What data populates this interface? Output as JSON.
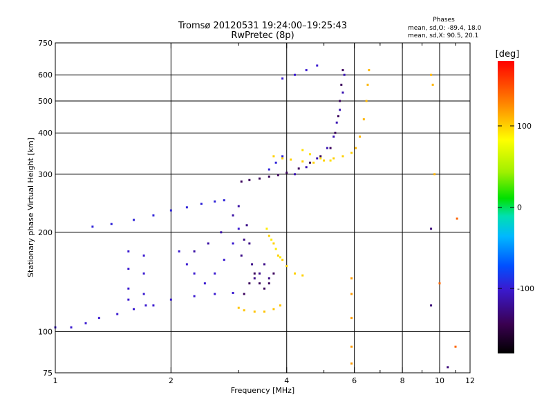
{
  "chart_data": {
    "type": "scatter",
    "title": "Tromsø 20120531 19:24:00–19:25:43",
    "subtitle": "RwPretec (8p)",
    "xlabel": "Frequency [MHz]",
    "ylabel": "Stationary phase Virtual Height [km]",
    "x_scale": "log",
    "y_scale": "log",
    "xlim": [
      1,
      12
    ],
    "ylim": [
      75,
      750
    ],
    "x_ticks": [
      1,
      2,
      4,
      6,
      8,
      10,
      12
    ],
    "x_minor_ticks": [
      3,
      5,
      7,
      9,
      11
    ],
    "y_ticks": [
      75,
      100,
      200,
      300,
      400,
      500,
      600,
      750
    ],
    "grid": true,
    "stats": {
      "heading": "Phases",
      "line1": "mean, sd,O: -89.4, 18.0",
      "line2": "mean, sd,X:  90.5, 20.1"
    },
    "colorbar": {
      "label": "[deg]",
      "range": [
        -180,
        180
      ],
      "ticks": [
        {
          "value": 100,
          "label": "100"
        },
        {
          "value": 0,
          "label": "0"
        },
        {
          "value": -100,
          "label": "-100"
        }
      ]
    },
    "traces": [
      {
        "phase": -100,
        "pts": [
          [
            1.0,
            103
          ],
          [
            1.1,
            103
          ],
          [
            1.2,
            106
          ],
          [
            1.3,
            110
          ],
          [
            1.45,
            113
          ],
          [
            1.6,
            117
          ],
          [
            1.8,
            120
          ],
          [
            2.0,
            125
          ],
          [
            2.3,
            128
          ],
          [
            2.6,
            130
          ],
          [
            2.9,
            131
          ]
        ]
      },
      {
        "phase": -95,
        "pts": [
          [
            1.25,
            208
          ],
          [
            1.4,
            212
          ],
          [
            1.6,
            218
          ],
          [
            1.8,
            225
          ],
          [
            2.0,
            233
          ],
          [
            2.2,
            238
          ],
          [
            2.4,
            244
          ],
          [
            2.6,
            248
          ],
          [
            2.75,
            250
          ]
        ]
      },
      {
        "phase": -100,
        "pts": [
          [
            1.55,
            175
          ],
          [
            1.55,
            155
          ],
          [
            1.55,
            135
          ],
          [
            1.55,
            125
          ]
        ]
      },
      {
        "phase": -100,
        "pts": [
          [
            1.7,
            170
          ],
          [
            1.7,
            150
          ],
          [
            1.7,
            130
          ],
          [
            1.72,
            120
          ]
        ]
      },
      {
        "phase": -100,
        "pts": [
          [
            2.1,
            175
          ],
          [
            2.2,
            160
          ],
          [
            2.3,
            150
          ],
          [
            2.45,
            140
          ],
          [
            2.6,
            150
          ],
          [
            2.75,
            165
          ],
          [
            2.9,
            185
          ],
          [
            3.0,
            205
          ]
        ]
      },
      {
        "phase": -115,
        "pts": [
          [
            2.3,
            175
          ],
          [
            2.5,
            185
          ],
          [
            2.7,
            200
          ],
          [
            2.9,
            225
          ],
          [
            3.0,
            240
          ]
        ]
      },
      {
        "phase": -125,
        "pts": [
          [
            3.05,
            170
          ],
          [
            3.1,
            190
          ],
          [
            3.15,
            210
          ],
          [
            3.2,
            185
          ],
          [
            3.25,
            160
          ],
          [
            3.3,
            145
          ],
          [
            3.4,
            150
          ],
          [
            3.5,
            160
          ],
          [
            3.6,
            145
          ]
        ]
      },
      {
        "phase": -140,
        "pts": [
          [
            3.1,
            130
          ],
          [
            3.2,
            140
          ],
          [
            3.3,
            150
          ],
          [
            3.4,
            140
          ],
          [
            3.5,
            135
          ],
          [
            3.6,
            140
          ],
          [
            3.7,
            150
          ]
        ]
      },
      {
        "phase": 105,
        "pts": [
          [
            3.0,
            118
          ],
          [
            3.1,
            116
          ],
          [
            3.3,
            115
          ],
          [
            3.5,
            115
          ],
          [
            3.7,
            117
          ],
          [
            3.85,
            120
          ]
        ]
      },
      {
        "phase": 100,
        "pts": [
          [
            3.6,
            195
          ],
          [
            3.7,
            185
          ],
          [
            3.8,
            170
          ],
          [
            3.9,
            165
          ],
          [
            4.0,
            158
          ],
          [
            4.2,
            150
          ],
          [
            4.4,
            148
          ]
        ]
      },
      {
        "phase": 90,
        "pts": [
          [
            3.55,
            205
          ],
          [
            3.65,
            190
          ],
          [
            3.75,
            178
          ],
          [
            3.85,
            168
          ]
        ]
      },
      {
        "phase": -140,
        "pts": [
          [
            3.05,
            285
          ],
          [
            3.2,
            288
          ],
          [
            3.4,
            291
          ],
          [
            3.6,
            295
          ],
          [
            3.8,
            298
          ],
          [
            4.0,
            303
          ],
          [
            4.3,
            312
          ],
          [
            4.6,
            325
          ],
          [
            4.9,
            340
          ],
          [
            5.2,
            360
          ],
          [
            5.35,
            400
          ],
          [
            5.45,
            450
          ],
          [
            5.5,
            500
          ],
          [
            5.55,
            560
          ],
          [
            5.6,
            620
          ]
        ]
      },
      {
        "phase": -110,
        "pts": [
          [
            4.2,
            300
          ],
          [
            4.5,
            315
          ],
          [
            4.8,
            335
          ],
          [
            5.1,
            360
          ],
          [
            5.3,
            390
          ],
          [
            5.4,
            430
          ],
          [
            5.5,
            470
          ],
          [
            5.6,
            530
          ],
          [
            5.65,
            600
          ]
        ]
      },
      {
        "phase": -95,
        "pts": [
          [
            3.6,
            310
          ],
          [
            3.75,
            325
          ],
          [
            3.9,
            340
          ]
        ]
      },
      {
        "phase": 100,
        "pts": [
          [
            3.7,
            340
          ],
          [
            3.9,
            335
          ],
          [
            4.1,
            332
          ],
          [
            4.4,
            328
          ],
          [
            4.7,
            325
          ],
          [
            5.0,
            330
          ],
          [
            5.3,
            335
          ],
          [
            5.6,
            340
          ],
          [
            5.9,
            348
          ]
        ]
      },
      {
        "phase": 95,
        "pts": [
          [
            4.4,
            355
          ],
          [
            4.6,
            345
          ],
          [
            4.9,
            335
          ],
          [
            5.2,
            330
          ]
        ]
      },
      {
        "phase": 110,
        "pts": [
          [
            6.05,
            360
          ],
          [
            6.2,
            390
          ],
          [
            6.35,
            440
          ],
          [
            6.45,
            500
          ],
          [
            6.5,
            560
          ],
          [
            6.55,
            620
          ]
        ]
      },
      {
        "phase": -100,
        "pts": [
          [
            3.9,
            585
          ],
          [
            4.2,
            600
          ],
          [
            4.5,
            620
          ],
          [
            4.8,
            640
          ]
        ]
      },
      {
        "phase": 120,
        "pts": [
          [
            5.9,
            145
          ],
          [
            5.9,
            130
          ],
          [
            5.9,
            110
          ],
          [
            5.9,
            90
          ],
          [
            5.9,
            80
          ]
        ]
      },
      {
        "phase": 110,
        "pts": [
          [
            9.5,
            600
          ],
          [
            9.6,
            560
          ],
          [
            9.7,
            300
          ]
        ]
      },
      {
        "phase": -130,
        "pts": [
          [
            9.5,
            205
          ],
          [
            9.5,
            120
          ],
          [
            10.5,
            78
          ]
        ]
      },
      {
        "phase": 140,
        "pts": [
          [
            11.0,
            90
          ],
          [
            11.1,
            220
          ],
          [
            10.0,
            140
          ]
        ]
      }
    ]
  }
}
